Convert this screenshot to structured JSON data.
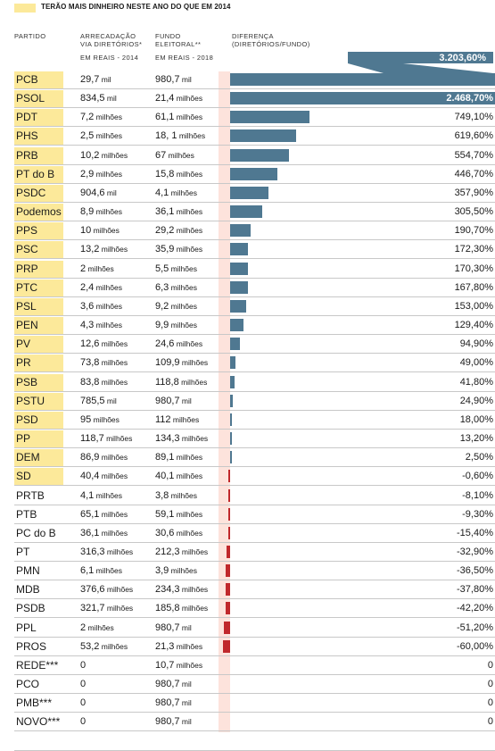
{
  "legend": {
    "label": "TERÃO MAIS DINHEIRO NESTE ANO DO QUE EM 2014",
    "color": "#fce99a"
  },
  "headers": {
    "party": "PARTIDO",
    "arrecadacao": "ARRECADAÇÃO\nVIA DIRETÓRIOS*",
    "arrecadacao_unit": "EM REAIS - 2014",
    "fundo": "FUNDO\nELEITORAL**",
    "fundo_unit": "EM REAIS - 2018",
    "diferenca": "DIFERENÇA\n(DIRETÓRIOS/FUNDO)"
  },
  "colors": {
    "positive": "#4f7891",
    "negative": "#c0282c",
    "highlight": "#fce99a",
    "column_band": "#fde3dc"
  },
  "top_value_label": "3.203,60%",
  "chart_data": {
    "type": "bar",
    "orientation": "horizontal",
    "categories": [
      "PCB",
      "PSOL",
      "PDT",
      "PHS",
      "PRB",
      "PT do B",
      "PSDC",
      "Podemos",
      "PPS",
      "PSC",
      "PRP",
      "PTC",
      "PSL",
      "PEN",
      "PV",
      "PR",
      "PSB",
      "PSTU",
      "PSD",
      "PP",
      "DEM",
      "SD",
      "PRTB",
      "PTB",
      "PC do B",
      "PT",
      "PMN",
      "MDB",
      "PSDB",
      "PPL",
      "PROS",
      "REDE***",
      "PCO",
      "PMB***",
      "NOVO***",
      ""
    ],
    "values": [
      3203.6,
      2468.7,
      749.1,
      619.6,
      554.7,
      446.7,
      357.9,
      305.5,
      190.7,
      172.3,
      170.3,
      167.8,
      153.0,
      129.4,
      94.9,
      49.0,
      41.8,
      24.9,
      18.0,
      13.2,
      2.5,
      -0.6,
      -8.1,
      -9.3,
      -15.4,
      -32.9,
      -36.5,
      -37.8,
      -42.2,
      -51.2,
      -60.0,
      0,
      0,
      0,
      0,
      null
    ],
    "value_labels": [
      "3.203,60%",
      "2.468,70%",
      "749,10%",
      "619,60%",
      "554,70%",
      "446,70%",
      "357,90%",
      "305,50%",
      "190,70%",
      "172,30%",
      "170,30%",
      "167,80%",
      "153,00%",
      "129,40%",
      "94,90%",
      "49,00%",
      "41,80%",
      "24,90%",
      "18,00%",
      "13,20%",
      "2,50%",
      "-0,60%",
      "-8,10%",
      "-9,30%",
      "-15,40%",
      "-32,90%",
      "-36,50%",
      "-37,80%",
      "-42,20%",
      "-51,20%",
      "-60,00%",
      "0",
      "0",
      "0",
      "0",
      ""
    ],
    "arrecadacao_2014": [
      [
        "29,7",
        "mil"
      ],
      [
        "834,5",
        "mil"
      ],
      [
        "7,2",
        "milhões"
      ],
      [
        "2,5",
        "milhões"
      ],
      [
        "10,2",
        "milhões"
      ],
      [
        "2,9",
        "milhões"
      ],
      [
        "904,6",
        "mil"
      ],
      [
        "8,9",
        "milhões"
      ],
      [
        "10",
        "milhões"
      ],
      [
        "13,2",
        "milhões"
      ],
      [
        "2",
        "milhões"
      ],
      [
        "2,4",
        "milhões"
      ],
      [
        "3,6",
        "milhões"
      ],
      [
        "4,3",
        "milhões"
      ],
      [
        "12,6",
        "milhões"
      ],
      [
        "73,8",
        "milhões"
      ],
      [
        "83,8",
        "milhões"
      ],
      [
        "785,5",
        "mil"
      ],
      [
        "95",
        "milhões"
      ],
      [
        "118,7",
        "milhões"
      ],
      [
        "86,9",
        "milhões"
      ],
      [
        "40,4",
        "milhões"
      ],
      [
        "4,1",
        "milhões"
      ],
      [
        "65,1",
        "milhões"
      ],
      [
        "36,1",
        "milhões"
      ],
      [
        "316,3",
        "milhões"
      ],
      [
        "6,1",
        "milhões"
      ],
      [
        "376,6",
        "milhões"
      ],
      [
        "321,7",
        "milhões"
      ],
      [
        "2",
        "milhões"
      ],
      [
        "53,2",
        "milhões"
      ],
      [
        "0",
        ""
      ],
      [
        "0",
        ""
      ],
      [
        "0",
        ""
      ],
      [
        "0",
        ""
      ],
      [
        "",
        ""
      ]
    ],
    "fundo_2018": [
      [
        "980,7",
        "mil"
      ],
      [
        "21,4",
        "milhões"
      ],
      [
        "61,1",
        "milhões"
      ],
      [
        "18, 1",
        "milhões"
      ],
      [
        "67",
        "milhões"
      ],
      [
        "15,8",
        "milhões"
      ],
      [
        "4,1",
        "milhões"
      ],
      [
        "36,1",
        "milhões"
      ],
      [
        "29,2",
        "milhões"
      ],
      [
        "35,9",
        "milhões"
      ],
      [
        "5,5",
        "milhões"
      ],
      [
        "6,3",
        "milhões"
      ],
      [
        "9,2",
        "milhões"
      ],
      [
        "9,9",
        "milhões"
      ],
      [
        "24,6",
        "milhões"
      ],
      [
        "109,9",
        "milhões"
      ],
      [
        "118,8",
        "milhões"
      ],
      [
        "980,7",
        "mil"
      ],
      [
        "112",
        "milhões"
      ],
      [
        "134,3",
        "milhões"
      ],
      [
        "89,1",
        "milhões"
      ],
      [
        "40,1",
        "milhões"
      ],
      [
        "3,8",
        "milhões"
      ],
      [
        "59,1",
        "milhões"
      ],
      [
        "30,6",
        "milhões"
      ],
      [
        "212,3",
        "milhões"
      ],
      [
        "3,9",
        "milhões"
      ],
      [
        "234,3",
        "milhões"
      ],
      [
        "185,8",
        "milhões"
      ],
      [
        "980,7",
        "mil"
      ],
      [
        "21,3",
        "milhões"
      ],
      [
        "10,7",
        "milhões"
      ],
      [
        "980,7",
        "mil"
      ],
      [
        "980,7",
        "mil"
      ],
      [
        "980,7",
        "mil"
      ],
      [
        "",
        ""
      ]
    ],
    "highlighted_count": 22
  }
}
